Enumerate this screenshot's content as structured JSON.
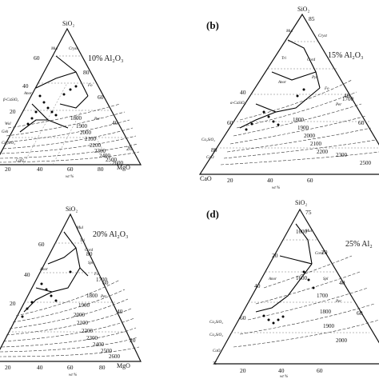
{
  "panels": [
    {
      "id": "a",
      "letter": "",
      "title": "10% Al₂O₃",
      "top": "SiO₂",
      "left": "",
      "right": "MgO",
      "bottom_ticks": [
        "20",
        "40",
        "60",
        "80"
      ],
      "axis_unit": "wt %",
      "isotherms": [
        "1800",
        "1900",
        "2000",
        "2100",
        "2200",
        "2300",
        "2400",
        "2500",
        "2600"
      ],
      "left_labels": [
        "60",
        "40",
        "20"
      ],
      "right_labels": [
        "80",
        "60",
        "40",
        "20"
      ],
      "phases": [
        "Cryst",
        "Mul",
        "Anor",
        "Fo",
        "Per",
        "Wol",
        "Geh",
        "β-CaSiO₃",
        "CaO",
        "Ca₂SiO₄"
      ]
    },
    {
      "id": "b",
      "letter": "(b)",
      "title": "15% Al₂O₃",
      "top": "SiO₂",
      "top_tick": "85",
      "left": "CaO",
      "right": "",
      "bottom_ticks": [
        "20",
        "40",
        "60"
      ],
      "axis_unit": "wt %",
      "isotherms": [
        "1700",
        "1800",
        "1900",
        "2000",
        "2100",
        "2200",
        "2300",
        "2500"
      ],
      "left_labels": [
        "40",
        "60",
        "80"
      ],
      "right_labels": [
        "40",
        "60"
      ],
      "phases": [
        "Mul",
        "Cryst",
        "Tri",
        "Cord",
        "Anor",
        "Pyr",
        "Fo",
        "Per",
        "α-CaSiO₃",
        "Ca₂SiO₄",
        "CaO"
      ]
    },
    {
      "id": "c",
      "letter": "",
      "title": "20% Al₂O₃",
      "top": "SiO₂",
      "left": "",
      "right": "MgO",
      "bottom_ticks": [
        "20",
        "40",
        "60",
        "80"
      ],
      "axis_unit": "wt %",
      "isotherms": [
        "1700",
        "1800",
        "1900",
        "2000",
        "2100",
        "2200",
        "2300",
        "2400",
        "2500",
        "2600"
      ],
      "left_labels": [
        "60",
        "40",
        "20"
      ],
      "right_labels": [
        "80",
        "60",
        "40",
        "20"
      ],
      "phases": [
        "Mul",
        "Tri",
        "Cord",
        "Spl",
        "Anor",
        "Fo",
        "Per"
      ]
    },
    {
      "id": "d",
      "letter": "(d)",
      "title": "25% Al₂",
      "top": "SiO₂",
      "top_tick": "75",
      "left": "",
      "right": "",
      "bottom_ticks": [
        "20",
        "40",
        "60"
      ],
      "axis_unit": "wt %",
      "isotherms": [
        "1600",
        "1600",
        "1700",
        "1800",
        "1900",
        "2000"
      ],
      "left_labels": [
        "20",
        "40",
        "60"
      ],
      "right_labels": [
        "20",
        "40",
        "60"
      ],
      "phases": [
        "Mul",
        "Cord",
        "Anor",
        "Spl",
        "Per",
        "Ca₂SiO₄",
        "Ca₂SiO₄",
        "CaO",
        "75"
      ]
    }
  ]
}
